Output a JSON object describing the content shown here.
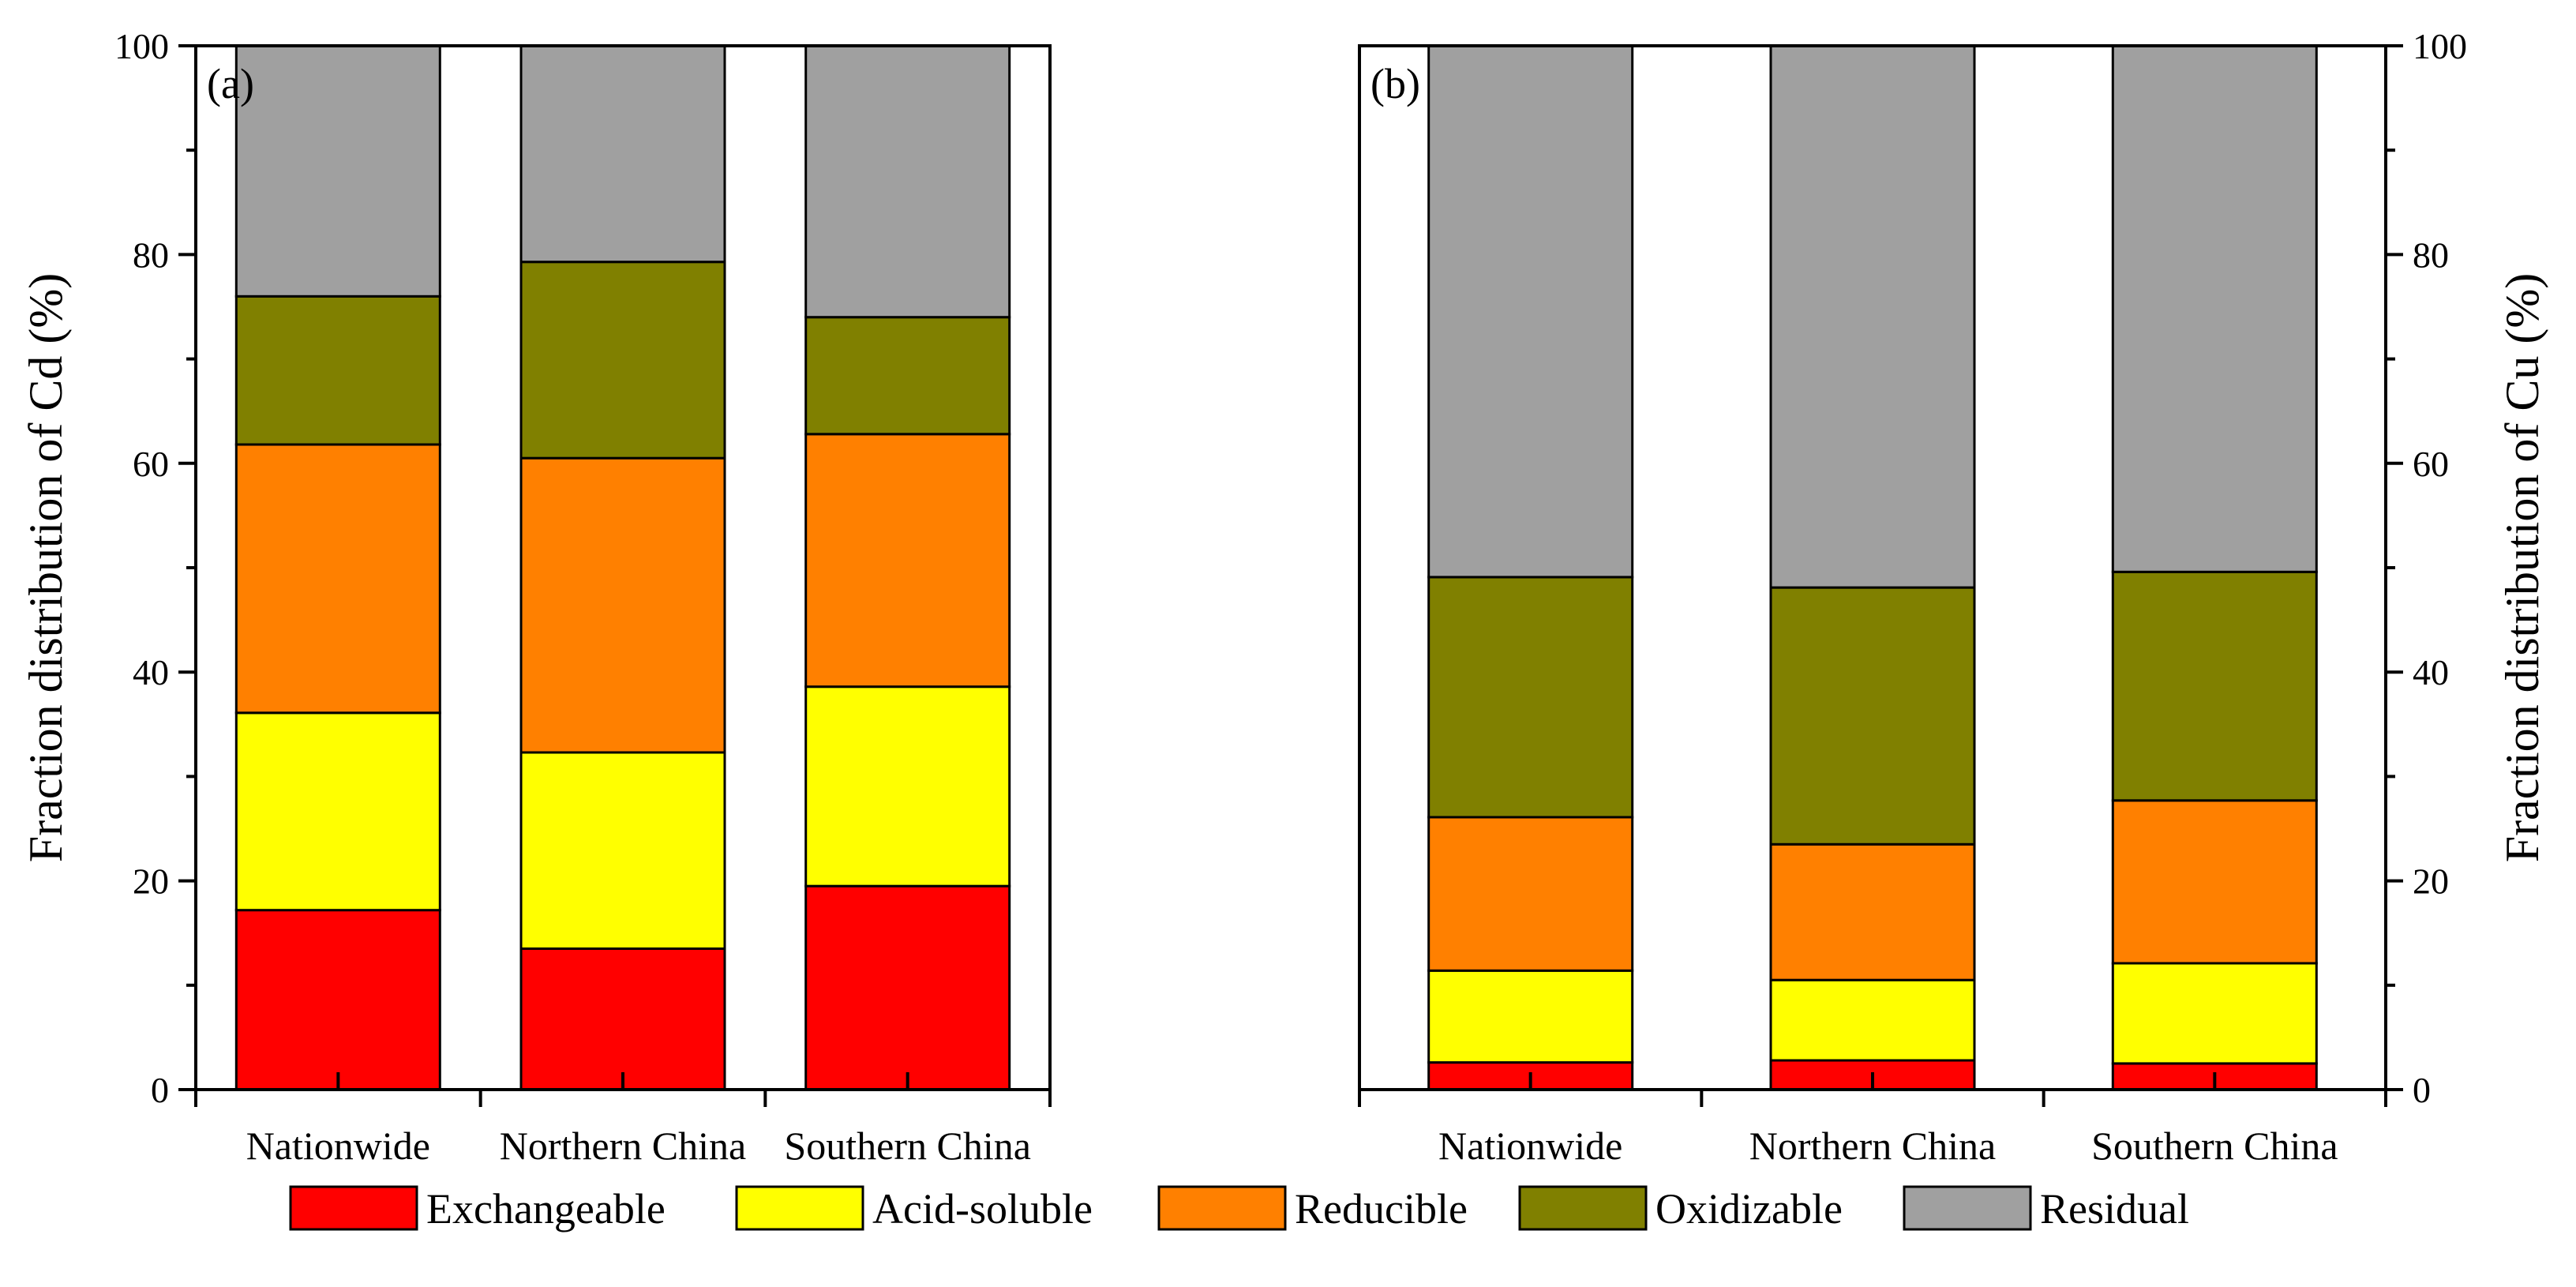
{
  "figure": {
    "legend_order": [
      "Exchangeable",
      "Acid-soluble",
      "Reducible",
      "Oxidizable",
      "Residual"
    ]
  },
  "colors": {
    "Exchangeable": "#ff0000",
    "Acid-soluble": "#ffff00",
    "Reducible": "#ff8000",
    "Oxidizable": "#808000",
    "Residual": "#a0a0a0"
  },
  "chart_data": [
    {
      "type": "bar",
      "stacked": true,
      "panel_label": "(a)",
      "ylabel": "Fraction distribution of Cd (%)",
      "y_axis_side": "left",
      "ylim": [
        0,
        100
      ],
      "yticks": [
        0,
        20,
        40,
        60,
        80,
        100
      ],
      "categories": [
        "Nationwide",
        "Northern China",
        "Southern China"
      ],
      "series": [
        {
          "name": "Exchangeable",
          "values": [
            17.2,
            13.5,
            19.5
          ]
        },
        {
          "name": "Acid-soluble",
          "values": [
            18.9,
            18.8,
            19.1
          ]
        },
        {
          "name": "Reducible",
          "values": [
            25.7,
            28.2,
            24.2
          ]
        },
        {
          "name": "Oxidizable",
          "values": [
            14.2,
            18.8,
            11.2
          ]
        },
        {
          "name": "Residual",
          "values": [
            24.0,
            20.7,
            26.0
          ]
        }
      ]
    },
    {
      "type": "bar",
      "stacked": true,
      "panel_label": "(b)",
      "ylabel": "Fraction distribution of Cu (%)",
      "y_axis_side": "right",
      "ylim": [
        0,
        100
      ],
      "yticks": [
        0,
        20,
        40,
        60,
        80,
        100
      ],
      "categories": [
        "Nationwide",
        "Northern China",
        "Southern China"
      ],
      "series": [
        {
          "name": "Exchangeable",
          "values": [
            2.6,
            2.8,
            2.5
          ]
        },
        {
          "name": "Acid-soluble",
          "values": [
            8.8,
            7.7,
            9.6
          ]
        },
        {
          "name": "Reducible",
          "values": [
            14.7,
            13.0,
            15.6
          ]
        },
        {
          "name": "Oxidizable",
          "values": [
            23.0,
            24.6,
            21.9
          ]
        },
        {
          "name": "Residual",
          "values": [
            50.9,
            51.9,
            50.4
          ]
        }
      ]
    }
  ]
}
